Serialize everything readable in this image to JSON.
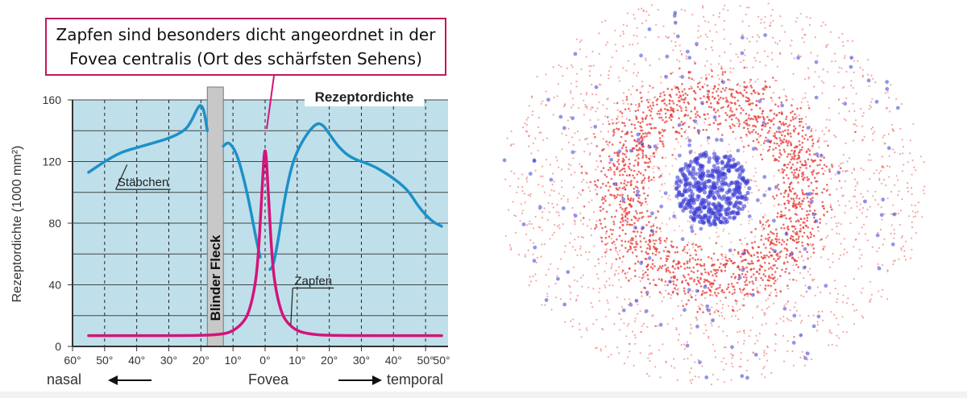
{
  "annotation": {
    "line1": "Zapfen sind besonders dicht angeordnet in der",
    "line2": "Fovea centralis (Ort des schärfsten Sehens)"
  },
  "labels": {
    "direction_left": "nasal",
    "center": "Fovea",
    "direction_right": "temporal",
    "blind_spot": "Blinder Fleck",
    "panel_title": "Rezeptordichte"
  },
  "colors": {
    "panel_bg": "#bfe0ea",
    "rods": "#1e90c8",
    "cones": "#d4147a",
    "annotation_border": "#c2185b",
    "blind_spot_bar": "#c8c8c8",
    "dot_red": "#e53935",
    "dot_blue": "#3d3dd6"
  },
  "chart_data": {
    "type": "line",
    "title": "Rezeptordichte",
    "xlabel": "",
    "ylabel": "Rezeptordichte (1000 mm²)",
    "xlim": [
      -60,
      57
    ],
    "ylim": [
      0,
      160
    ],
    "x_ticks": [
      -60,
      -50,
      -40,
      -30,
      -20,
      -10,
      0,
      10,
      20,
      30,
      40,
      50
    ],
    "x_tick_labels": [
      "60°",
      "50°",
      "40°",
      "30°",
      "20°",
      "10°",
      "0°",
      "10°",
      "20°",
      "30°",
      "40°",
      "50°"
    ],
    "y_ticks": [
      0,
      40,
      80,
      120,
      160
    ],
    "y_tick_labels": [
      "0",
      "40",
      "80",
      "120",
      "160"
    ],
    "grid": true,
    "blind_spot_range": [
      -18,
      -13
    ],
    "series": [
      {
        "name": "Stäbchen",
        "segments": [
          [
            [
              -55,
              113
            ],
            [
              -50,
              120
            ],
            [
              -45,
              126
            ],
            [
              -40,
              129
            ],
            [
              -35,
              132
            ],
            [
              -30,
              135
            ],
            [
              -25,
              140
            ],
            [
              -23,
              146
            ],
            [
              -21,
              155
            ],
            [
              -20,
              157
            ],
            [
              -19,
              153
            ],
            [
              -18,
              140
            ]
          ],
          [
            [
              -13,
              130
            ],
            [
              -12,
              132
            ],
            [
              -11,
              132
            ],
            [
              -9,
              126
            ],
            [
              -7,
              112
            ],
            [
              -5,
              94
            ],
            [
              -3,
              72
            ],
            [
              -2,
              62
            ],
            [
              -1.5,
              58
            ]
          ],
          [
            [
              1.5,
              50
            ],
            [
              2.5,
              52
            ],
            [
              4,
              68
            ],
            [
              6,
              95
            ],
            [
              8,
              115
            ],
            [
              10,
              127
            ],
            [
              13,
              138
            ],
            [
              16,
              145
            ],
            [
              18,
              144
            ],
            [
              20,
              138
            ],
            [
              23,
              129
            ],
            [
              27,
              122
            ],
            [
              33,
              118
            ],
            [
              38,
              112
            ],
            [
              42,
              106
            ],
            [
              45,
              100
            ],
            [
              48,
              90
            ],
            [
              52,
              81
            ],
            [
              55,
              78
            ]
          ]
        ]
      },
      {
        "name": "Zapfen",
        "segments": [
          [
            [
              -55,
              7
            ],
            [
              -20,
              7
            ],
            [
              -13,
              8
            ],
            [
              -10,
              10
            ],
            [
              -7,
              15
            ],
            [
              -5,
              22
            ],
            [
              -3,
              40
            ],
            [
              -2,
              62
            ],
            [
              -1,
              100
            ],
            [
              0,
              136
            ],
            [
              1,
              100
            ],
            [
              2,
              62
            ],
            [
              3,
              40
            ],
            [
              5,
              22
            ],
            [
              7,
              15
            ],
            [
              10,
              10
            ],
            [
              14,
              8
            ],
            [
              20,
              7
            ],
            [
              55,
              7
            ]
          ]
        ]
      }
    ],
    "series_labels": [
      {
        "text": "Stäbchen",
        "x": -38,
        "y": 104,
        "leader_to": [
          -43,
          118
        ]
      },
      {
        "text": "Zapfen",
        "x": 15,
        "y": 40,
        "leader_to": [
          8,
          14
        ]
      }
    ]
  }
}
